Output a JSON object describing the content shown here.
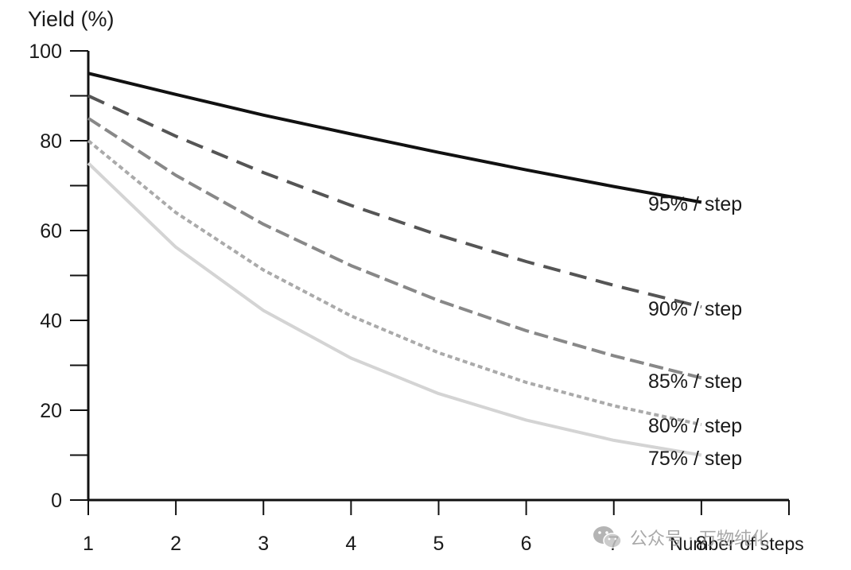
{
  "chart_data": {
    "type": "line",
    "ylabel": "Yield (%)",
    "xlabel": "Number of steps",
    "xlim": [
      1,
      9
    ],
    "ylim": [
      0,
      100
    ],
    "x_ticks": [
      1,
      2,
      3,
      4,
      5,
      6,
      7,
      8,
      9
    ],
    "x_tick_labels": [
      "1",
      "2",
      "3",
      "4",
      "5",
      "6",
      "7",
      "8"
    ],
    "y_tick_labels": [
      0,
      20,
      40,
      60,
      80,
      100
    ],
    "y_minor_step": 10,
    "grid": false,
    "series": [
      {
        "name": "95% / step",
        "color": "#111111",
        "dash": "solid",
        "x": [
          1,
          2,
          3,
          4,
          5,
          6,
          7,
          8
        ],
        "values": [
          95.0,
          90.3,
          85.7,
          81.5,
          77.4,
          73.5,
          69.8,
          66.3
        ]
      },
      {
        "name": "90% / step",
        "color": "#555555",
        "dash": "long-dash",
        "x": [
          1,
          2,
          3,
          4,
          5,
          6,
          7,
          8
        ],
        "values": [
          90.0,
          81.0,
          72.9,
          65.6,
          59.0,
          53.1,
          47.8,
          43.0
        ]
      },
      {
        "name": "85% / step",
        "color": "#888888",
        "dash": "dash",
        "x": [
          1,
          2,
          3,
          4,
          5,
          6,
          7,
          8
        ],
        "values": [
          85.0,
          72.3,
          61.4,
          52.2,
          44.4,
          37.7,
          32.1,
          27.2
        ]
      },
      {
        "name": "80% / step",
        "color": "#aaaaaa",
        "dash": "short-dash",
        "x": [
          1,
          2,
          3,
          4,
          5,
          6,
          7,
          8
        ],
        "values": [
          80.0,
          64.0,
          51.2,
          41.0,
          32.8,
          26.2,
          21.0,
          16.8
        ]
      },
      {
        "name": "75% / step",
        "color": "#d4d4d4",
        "dash": "solid",
        "x": [
          1,
          2,
          3,
          4,
          5,
          6,
          7,
          8
        ],
        "values": [
          75.0,
          56.3,
          42.2,
          31.6,
          23.7,
          17.8,
          13.3,
          10.0
        ]
      }
    ]
  },
  "watermark": {
    "text": "公众号 · 万物纯化",
    "icon": "wechat-icon"
  }
}
